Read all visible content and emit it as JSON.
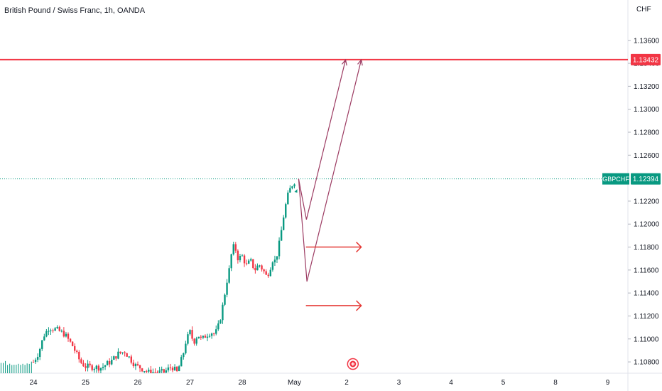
{
  "chart_data": {
    "type": "candlestick",
    "title": "British Pound / Swiss Franc, 1h, OANDA",
    "currency": "CHF",
    "y_ticks": [
      "1.13600",
      "1.13400",
      "1.13200",
      "1.13000",
      "1.12800",
      "1.12600",
      "1.12200",
      "1.12000",
      "1.11800",
      "1.11600",
      "1.11400",
      "1.11200",
      "1.11000",
      "1.10800"
    ],
    "ylim": [
      1.1072,
      1.1384
    ],
    "x_labels": [
      "24",
      "25",
      "26",
      "27",
      "28",
      "May",
      "2",
      "3",
      "4",
      "5",
      "8",
      "9"
    ],
    "resistance": {
      "value": 1.13432,
      "label": "1.13432"
    },
    "last_price": {
      "symbol": "GBPCHF",
      "value": 1.12394,
      "label": "1.12394"
    },
    "price_points": [
      [
        0,
        1.108
      ],
      [
        0.1,
        1.1088
      ],
      [
        0.2,
        1.1103
      ],
      [
        0.3,
        1.111
      ],
      [
        0.45,
        1.1108
      ],
      [
        0.6,
        1.1104
      ],
      [
        0.75,
        1.1094
      ],
      [
        0.9,
        1.108
      ],
      [
        1.0,
        1.1076
      ],
      [
        1.3,
        1.1075
      ],
      [
        1.5,
        1.1081
      ],
      [
        1.62,
        1.1087
      ],
      [
        1.75,
        1.1089
      ],
      [
        1.85,
        1.1083
      ],
      [
        1.95,
        1.1077
      ],
      [
        2.05,
        1.1075
      ],
      [
        2.2,
        1.1071
      ],
      [
        2.5,
        1.1071
      ],
      [
        2.65,
        1.1076
      ],
      [
        2.75,
        1.1071
      ],
      [
        2.8,
        1.1077
      ],
      [
        2.87,
        1.1087
      ],
      [
        2.92,
        1.1098
      ],
      [
        3.0,
        1.1106
      ],
      [
        3.07,
        1.1097
      ],
      [
        3.15,
        1.1104
      ],
      [
        3.22,
        1.1099
      ],
      [
        3.3,
        1.1103
      ],
      [
        3.4,
        1.1106
      ],
      [
        3.48,
        1.1104
      ],
      [
        3.55,
        1.1112
      ],
      [
        3.6,
        1.1122
      ],
      [
        3.65,
        1.1135
      ],
      [
        3.7,
        1.1149
      ],
      [
        3.75,
        1.116
      ],
      [
        3.8,
        1.1176
      ],
      [
        3.85,
        1.1182
      ],
      [
        3.92,
        1.117
      ],
      [
        4.0,
        1.1172
      ],
      [
        4.08,
        1.1164
      ],
      [
        4.16,
        1.1168
      ],
      [
        4.24,
        1.116
      ],
      [
        4.32,
        1.1165
      ],
      [
        4.4,
        1.116
      ],
      [
        4.47,
        1.1154
      ],
      [
        4.53,
        1.1161
      ],
      [
        4.58,
        1.1169
      ],
      [
        4.63,
        1.1168
      ],
      [
        4.68,
        1.1176
      ],
      [
        4.73,
        1.1188
      ],
      [
        4.78,
        1.1204
      ],
      [
        4.83,
        1.1216
      ],
      [
        4.88,
        1.1226
      ],
      [
        4.93,
        1.1232
      ],
      [
        4.98,
        1.1236
      ],
      [
        5.04,
        1.1239
      ]
    ],
    "projection_path": [
      [
        5.08,
        1.12394
      ],
      [
        5.23,
        1.1204
      ],
      [
        5.98,
        1.1343
      ]
    ],
    "projection_path_2": [
      [
        5.08,
        1.12394
      ],
      [
        5.24,
        1.115
      ],
      [
        6.28,
        1.1343
      ]
    ],
    "arrows": [
      {
        "from": [
          5.22,
          1.118
        ],
        "to": [
          6.28,
          1.118
        ]
      },
      {
        "from": [
          5.22,
          1.1129
        ],
        "to": [
          6.28,
          1.1129
        ]
      }
    ],
    "colors": {
      "resistance": "#f23645",
      "last_price": "#089981",
      "projection": "#9c3b62",
      "arrow": "#e53935",
      "up": "#089981",
      "down": "#f23645"
    }
  }
}
